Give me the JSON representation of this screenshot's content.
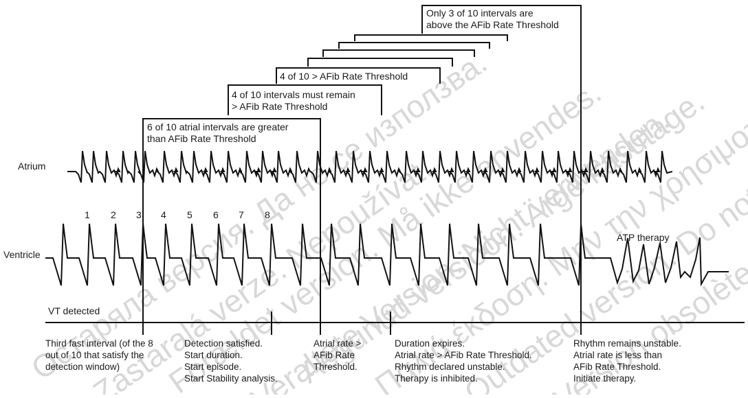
{
  "labels": {
    "atrium": "Atrium",
    "ventricle": "Ventricle",
    "vt_detected": "VT detected",
    "atp_therapy": "ATP therapy"
  },
  "beat_numbers": [
    "1",
    "2",
    "3",
    "4",
    "5",
    "6",
    "7",
    "8"
  ],
  "brackets": [
    {
      "lines": [
        "6 of 10 atrial intervals are greater",
        "than AFib Rate Threshold"
      ]
    },
    {
      "lines": [
        "4 of 10 intervals must remain",
        "> AFib Rate Threshold"
      ]
    },
    {
      "lines": [
        "4 of 10 > AFib Rate Threshold"
      ]
    },
    {
      "lines": [
        "Only 3 of 10 intervals are",
        "above the AFib Rate Threshold"
      ]
    }
  ],
  "annotations": [
    {
      "lines": [
        "Third fast interval (of the 8",
        "out of 10 that satisfy the",
        "detection window)"
      ]
    },
    {
      "lines": [
        "Detection satisfied.",
        "Start duration.",
        "Start episode.",
        "Start Stability analysis."
      ]
    },
    {
      "lines": [
        "Atrial rate >",
        "AFib Rate",
        "Threshold."
      ]
    },
    {
      "lines": [
        "Duration expires.",
        "Atrial rate > AFib Rate Threshold.",
        "Rhythm declared unstable.",
        "Therapy is inhibited."
      ]
    },
    {
      "lines": [
        "Rhythm remains unstable.",
        "Atrial rate is less than",
        "AFib Rate Threshold.",
        "Initiate therapy."
      ]
    }
  ],
  "watermarks": [
    "Остаряла версия. Да не се използва.",
    "Zastaralá verze. Nepoužívat.",
    "Forældet version. Må ikke anvendes.",
    "Veraltete Version. Nicht verwenden.",
    "Aegunud versioon. Ärge kasutage.",
    "Παλιά έκδοση. Μην την χρησιμοποιείτε.",
    "Outdated version. Do not use.",
    "Version obsolète. Ne pas utiliser."
  ]
}
